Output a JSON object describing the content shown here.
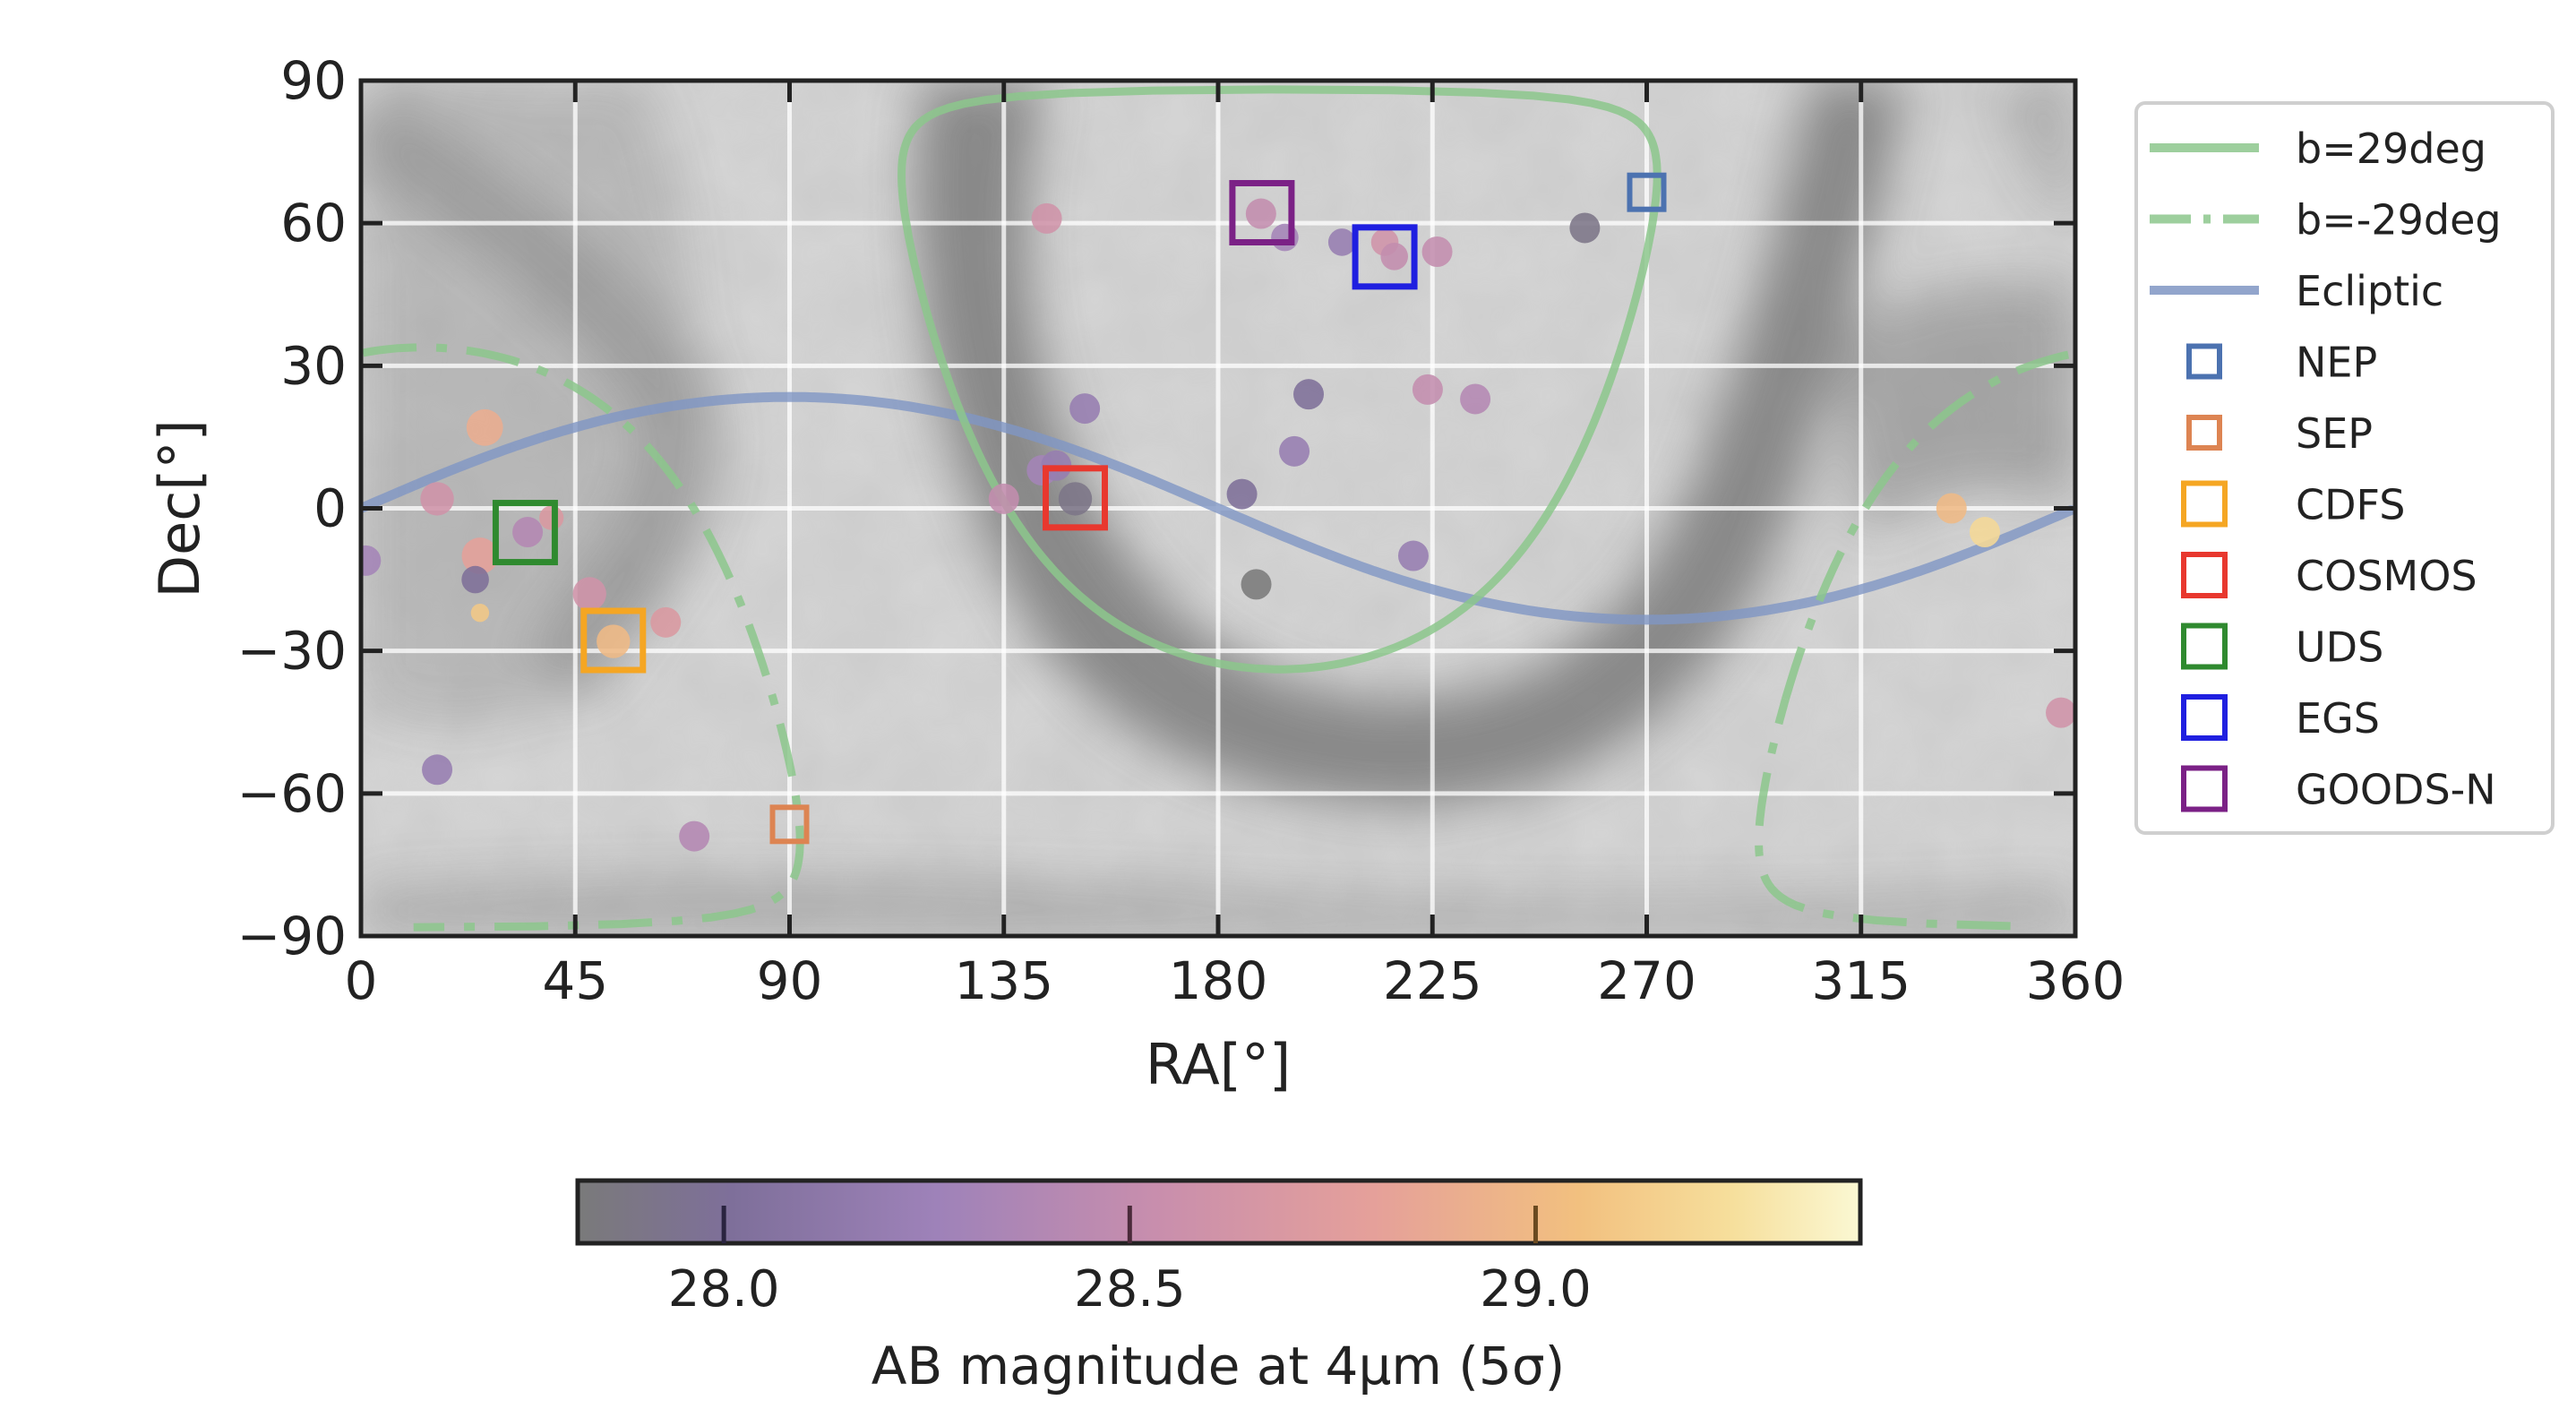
{
  "chart_data": {
    "type": "scatter",
    "xlabel": "RA[°]",
    "ylabel": "Dec[°]",
    "xlim": [
      0,
      360
    ],
    "ylim": [
      -90,
      90
    ],
    "xticks": [
      0,
      45,
      90,
      135,
      180,
      225,
      270,
      315,
      360
    ],
    "yticks": [
      90,
      60,
      30,
      0,
      -30,
      -60,
      -90
    ],
    "grid": true,
    "legend_position": "right",
    "legend": [
      {
        "label": "b=29deg",
        "kind": "line",
        "style": "solid",
        "color": "#8cc78c"
      },
      {
        "label": "b=-29deg",
        "kind": "line",
        "style": "dashdot",
        "color": "#8cc78c"
      },
      {
        "label": "Ecliptic",
        "kind": "line",
        "style": "solid",
        "color": "#7f96c4"
      },
      {
        "label": "NEP",
        "kind": "square",
        "size": "small",
        "color": "#4c72b0"
      },
      {
        "label": "SEP",
        "kind": "square",
        "size": "small",
        "color": "#dd8452"
      },
      {
        "label": "CDFS",
        "kind": "square",
        "size": "large",
        "color": "#f5a623"
      },
      {
        "label": "COSMOS",
        "kind": "square",
        "size": "large",
        "color": "#e8382e"
      },
      {
        "label": "UDS",
        "kind": "square",
        "size": "large",
        "color": "#2f8a2f"
      },
      {
        "label": "EGS",
        "kind": "square",
        "size": "large",
        "color": "#1f1fe0"
      },
      {
        "label": "GOODS-N",
        "kind": "square",
        "size": "large",
        "color": "#7b2186"
      }
    ],
    "fields": [
      {
        "name": "NEP",
        "ra": 270,
        "dec": 66.5
      },
      {
        "name": "SEP",
        "ra": 90,
        "dec": -66.5
      },
      {
        "name": "CDFS",
        "ra": 53,
        "dec": -27.8
      },
      {
        "name": "COSMOS",
        "ra": 150,
        "dec": 2.2
      },
      {
        "name": "UDS",
        "ra": 34.5,
        "dec": -5.1
      },
      {
        "name": "EGS",
        "ra": 215,
        "dec": 52.9
      },
      {
        "name": "GOODS-N",
        "ra": 189.2,
        "dec": 62.2
      }
    ],
    "points": [
      {
        "ra": 144,
        "dec": 61,
        "mag": 28.6,
        "size": 1.0
      },
      {
        "ra": 189,
        "dec": 62,
        "mag": 28.5,
        "size": 1.0
      },
      {
        "ra": 194,
        "dec": 57,
        "mag": 28.3,
        "size": 0.9
      },
      {
        "ra": 206,
        "dec": 56,
        "mag": 28.2,
        "size": 0.9
      },
      {
        "ra": 215,
        "dec": 56,
        "mag": 28.6,
        "size": 0.9
      },
      {
        "ra": 217,
        "dec": 53,
        "mag": 28.5,
        "size": 0.9
      },
      {
        "ra": 226,
        "dec": 54,
        "mag": 28.5,
        "size": 1.0
      },
      {
        "ra": 257,
        "dec": 59,
        "mag": 27.9,
        "size": 1.0
      },
      {
        "ra": 152,
        "dec": 21,
        "mag": 28.2,
        "size": 1.0
      },
      {
        "ra": 199,
        "dec": 24,
        "mag": 28.0,
        "size": 1.0
      },
      {
        "ra": 224,
        "dec": 25,
        "mag": 28.5,
        "size": 1.0
      },
      {
        "ra": 234,
        "dec": 23,
        "mag": 28.4,
        "size": 1.0
      },
      {
        "ra": 196,
        "dec": 12,
        "mag": 28.2,
        "size": 1.0
      },
      {
        "ra": 143,
        "dec": 8,
        "mag": 28.3,
        "size": 1.0
      },
      {
        "ra": 146,
        "dec": 9,
        "mag": 28.2,
        "size": 1.0
      },
      {
        "ra": 135,
        "dec": 2,
        "mag": 28.5,
        "size": 1.0
      },
      {
        "ra": 150,
        "dec": 2,
        "mag": 27.9,
        "size": 1.1
      },
      {
        "ra": 185,
        "dec": 3,
        "mag": 28.0,
        "size": 1.0
      },
      {
        "ra": 221,
        "dec": -10,
        "mag": 28.2,
        "size": 1.0
      },
      {
        "ra": 188,
        "dec": -16,
        "mag": 27.8,
        "size": 1.0
      },
      {
        "ra": 26,
        "dec": 17,
        "mag": 28.9,
        "size": 1.2
      },
      {
        "ra": 16,
        "dec": 2,
        "mag": 28.6,
        "size": 1.1
      },
      {
        "ra": 40,
        "dec": -2,
        "mag": 28.7,
        "size": 0.8
      },
      {
        "ra": 35,
        "dec": -5,
        "mag": 28.4,
        "size": 1.0
      },
      {
        "ra": 25,
        "dec": -10,
        "mag": 28.8,
        "size": 1.2
      },
      {
        "ra": 24,
        "dec": -15,
        "mag": 28.0,
        "size": 0.9
      },
      {
        "ra": 25,
        "dec": -22,
        "mag": 29.1,
        "size": 0.6
      },
      {
        "ra": 48,
        "dec": -18,
        "mag": 28.6,
        "size": 1.1
      },
      {
        "ra": 53,
        "dec": -28,
        "mag": 29.0,
        "size": 1.1
      },
      {
        "ra": 64,
        "dec": -24,
        "mag": 28.7,
        "size": 1.0
      },
      {
        "ra": 1,
        "dec": -11,
        "mag": 28.3,
        "size": 1.0
      },
      {
        "ra": 16,
        "dec": -55,
        "mag": 28.2,
        "size": 1.0
      },
      {
        "ra": 70,
        "dec": -69,
        "mag": 28.4,
        "size": 1.0
      },
      {
        "ra": 334,
        "dec": 0,
        "mag": 29.0,
        "size": 1.0
      },
      {
        "ra": 341,
        "dec": -5,
        "mag": 29.2,
        "size": 1.0
      },
      {
        "ra": 357,
        "dec": -43,
        "mag": 28.6,
        "size": 1.0
      }
    ],
    "colorbar": {
      "label": "AB magnitude at 4μm (5σ)",
      "min": 27.82,
      "max": 29.4,
      "ticks": [
        28.0,
        28.5,
        29.0
      ],
      "tick_labels": [
        "28.0",
        "28.5",
        "29.0"
      ]
    }
  }
}
